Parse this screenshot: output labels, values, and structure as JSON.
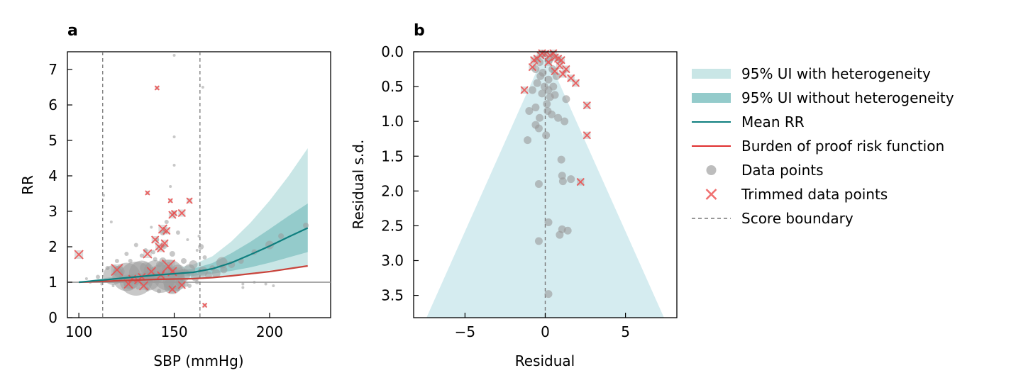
{
  "colors": {
    "ui_het": "#c9e6e6",
    "ui_nohet": "#94cbcb",
    "mean": "#0f7f7f",
    "bop": "#c8443c",
    "points": "#9a9a9a",
    "trim": "#ef4a4a",
    "boundary": "#777777",
    "funnel": "#d5ecf0",
    "ref": "#8c8c8c"
  },
  "legend": [
    {
      "label": "95% UI with heterogeneity",
      "kind": "band-light"
    },
    {
      "label": "95% UI without heterogeneity",
      "kind": "band-dark"
    },
    {
      "label": "Mean RR",
      "kind": "line-teal"
    },
    {
      "label": "Burden of proof risk function",
      "kind": "line-red"
    },
    {
      "label": "Data points",
      "kind": "dot"
    },
    {
      "label": "Trimmed data points",
      "kind": "cross"
    },
    {
      "label": "Score boundary",
      "kind": "dash"
    }
  ],
  "chart_data": [
    {
      "panel_label": "a",
      "type": "scatter",
      "xlabel": "SBP (mmHg)",
      "ylabel": "RR",
      "xlim": [
        94,
        232
      ],
      "ylim": [
        0,
        7.5
      ],
      "xticks": [
        100,
        150,
        200
      ],
      "yticks": [
        0,
        1,
        2,
        3,
        4,
        5,
        6,
        7
      ],
      "score_boundaries": [
        112.5,
        163.5
      ],
      "reference_line_y": 1,
      "curve_x": [
        100,
        110,
        120,
        130,
        140,
        150,
        160,
        170,
        180,
        190,
        200,
        210,
        220
      ],
      "mean_rr": [
        1.0,
        1.05,
        1.1,
        1.15,
        1.2,
        1.24,
        1.28,
        1.38,
        1.55,
        1.78,
        2.02,
        2.28,
        2.53
      ],
      "ui_nohet_lower": [
        1.0,
        1.04,
        1.08,
        1.11,
        1.14,
        1.16,
        1.18,
        1.24,
        1.32,
        1.42,
        1.55,
        1.7,
        1.85
      ],
      "ui_nohet_upper": [
        1.0,
        1.07,
        1.13,
        1.19,
        1.26,
        1.31,
        1.38,
        1.54,
        1.82,
        2.14,
        2.5,
        2.87,
        3.22
      ],
      "ui_het_lower": [
        1.0,
        1.02,
        1.05,
        1.07,
        1.09,
        1.1,
        1.11,
        1.15,
        1.2,
        1.26,
        1.33,
        1.4,
        1.47
      ],
      "ui_het_upper": [
        1.0,
        1.09,
        1.17,
        1.25,
        1.32,
        1.39,
        1.5,
        1.73,
        2.15,
        2.68,
        3.3,
        4.0,
        4.78
      ],
      "bop_risk": [
        1.0,
        1.02,
        1.04,
        1.06,
        1.08,
        1.09,
        1.1,
        1.13,
        1.18,
        1.24,
        1.3,
        1.38,
        1.46
      ],
      "data_points": [
        [
          118,
          1.2,
          14
        ],
        [
          125,
          1.15,
          20
        ],
        [
          130,
          1.1,
          24
        ],
        [
          133,
          1.25,
          18
        ],
        [
          137,
          1.05,
          14
        ],
        [
          140,
          1.3,
          16
        ],
        [
          143,
          1.1,
          20
        ],
        [
          147,
          1.2,
          22
        ],
        [
          150,
          1.05,
          16
        ],
        [
          149,
          0.9,
          12
        ],
        [
          121,
          1.3,
          8
        ],
        [
          127,
          1.0,
          10
        ],
        [
          135,
          1.4,
          8
        ],
        [
          152,
          1.3,
          10
        ],
        [
          155,
          1.2,
          9
        ],
        [
          158,
          1.35,
          8
        ],
        [
          161,
          1.15,
          6
        ],
        [
          165,
          1.3,
          7
        ],
        [
          168,
          1.2,
          5
        ],
        [
          172,
          1.25,
          6
        ],
        [
          176,
          1.35,
          5
        ],
        [
          180,
          1.5,
          5
        ],
        [
          185,
          1.6,
          4
        ],
        [
          192,
          1.85,
          4
        ],
        [
          200,
          2.05,
          6
        ],
        [
          206,
          2.3,
          4
        ],
        [
          219,
          2.6,
          4
        ],
        [
          175,
          1.55,
          8
        ],
        [
          170,
          1.4,
          4
        ],
        [
          160,
          1.5,
          6
        ],
        [
          155,
          1.6,
          4
        ],
        [
          149,
          1.8,
          4
        ],
        [
          145,
          2.0,
          3
        ],
        [
          140,
          1.65,
          3
        ],
        [
          135,
          1.9,
          3
        ],
        [
          130,
          2.05,
          3
        ],
        [
          125,
          1.8,
          3
        ],
        [
          120,
          1.6,
          3
        ],
        [
          115,
          1.4,
          3
        ],
        [
          110,
          1.15,
          3
        ],
        [
          106,
          1.0,
          2
        ],
        [
          104,
          1.1,
          2
        ],
        [
          117,
          2.7,
          2
        ],
        [
          113,
          3.45,
          2
        ],
        [
          112,
          0.95,
          2
        ],
        [
          118,
          0.9,
          2
        ],
        [
          150,
          4.3,
          2
        ],
        [
          150,
          5.1,
          2
        ],
        [
          148,
          3.7,
          2
        ],
        [
          146,
          2.7,
          3
        ],
        [
          144,
          2.4,
          4
        ],
        [
          141,
          2.2,
          3
        ],
        [
          138,
          2.55,
          2
        ],
        [
          152,
          2.4,
          3
        ],
        [
          157,
          2.2,
          2
        ],
        [
          162,
          1.9,
          2
        ],
        [
          164,
          2.0,
          4
        ],
        [
          166,
          1.7,
          3
        ],
        [
          163,
          2.3,
          2
        ],
        [
          165,
          6.5,
          2
        ],
        [
          150,
          7.4,
          2
        ],
        [
          142,
          1.5,
          4
        ],
        [
          147,
          1.45,
          6
        ],
        [
          153,
          1.0,
          6
        ],
        [
          156,
          0.95,
          4
        ],
        [
          186,
          0.85,
          2
        ],
        [
          186,
          0.95,
          2
        ],
        [
          192,
          1.0,
          2
        ],
        [
          198,
          0.95,
          2
        ],
        [
          202,
          0.9,
          2
        ],
        [
          127,
          1.6,
          3
        ],
        [
          133,
          1.75,
          3
        ],
        [
          139,
          1.85,
          3
        ],
        [
          144,
          1.6,
          5
        ],
        [
          136,
          0.8,
          3
        ],
        [
          131,
          0.85,
          3
        ],
        [
          142,
          0.75,
          3
        ],
        [
          152,
          0.8,
          3
        ],
        [
          158,
          0.9,
          3
        ],
        [
          162,
          1.0,
          3
        ]
      ],
      "trimmed_points": [
        [
          100,
          1.78,
          6
        ],
        [
          120,
          1.35,
          8
        ],
        [
          126,
          0.95,
          6
        ],
        [
          131,
          1.05,
          5
        ],
        [
          134,
          0.9,
          6
        ],
        [
          136,
          1.8,
          6
        ],
        [
          140,
          2.2,
          5
        ],
        [
          142,
          2.0,
          5
        ],
        [
          143,
          1.95,
          5
        ],
        [
          144,
          2.5,
          6
        ],
        [
          145,
          2.1,
          5
        ],
        [
          146,
          2.45,
          5
        ],
        [
          147,
          1.45,
          9
        ],
        [
          149,
          1.3,
          6
        ],
        [
          149,
          0.8,
          5
        ],
        [
          148,
          3.3,
          3
        ],
        [
          149,
          2.9,
          5
        ],
        [
          150,
          2.95,
          4
        ],
        [
          154,
          2.95,
          5
        ],
        [
          158,
          3.3,
          4
        ],
        [
          141,
          6.48,
          3
        ],
        [
          136,
          3.52,
          3
        ],
        [
          154,
          0.92,
          5
        ],
        [
          166,
          0.35,
          3
        ],
        [
          143,
          1.2,
          5
        ],
        [
          138,
          1.3,
          6
        ],
        [
          133,
          1.15,
          5
        ],
        [
          128,
          1.1,
          5
        ]
      ]
    },
    {
      "panel_label": "b",
      "type": "scatter",
      "xlabel": "Residual",
      "ylabel": "Residual s.d.",
      "xlim": [
        -8.2,
        8.2
      ],
      "ylim": [
        3.82,
        0
      ],
      "xticks": [
        -5,
        0,
        5
      ],
      "xtick_labels": [
        "−5",
        "0",
        "5"
      ],
      "yticks": [
        0.0,
        0.5,
        1.0,
        1.5,
        2.0,
        2.5,
        3.0,
        3.5
      ],
      "ytick_labels": [
        "0.0",
        "0.5",
        "1.0",
        "1.5",
        "2.0",
        "2.5",
        "3.0",
        "3.5"
      ],
      "funnel_half_width_at_bottom": 7.4,
      "data_points": [
        [
          -0.3,
          0.35
        ],
        [
          -0.5,
          0.45
        ],
        [
          0.2,
          0.4
        ],
        [
          0.5,
          0.5
        ],
        [
          -0.2,
          0.6
        ],
        [
          0.3,
          0.65
        ],
        [
          -0.8,
          0.55
        ],
        [
          -0.6,
          0.8
        ],
        [
          0.1,
          0.75
        ],
        [
          0.6,
          0.62
        ],
        [
          1.3,
          0.68
        ],
        [
          -1.0,
          0.85
        ],
        [
          0.15,
          0.85
        ],
        [
          -0.35,
          0.95
        ],
        [
          0.4,
          0.9
        ],
        [
          0.8,
          0.95
        ],
        [
          1.2,
          1.0
        ],
        [
          -0.6,
          1.05
        ],
        [
          -0.4,
          1.1
        ],
        [
          -1.1,
          1.27
        ],
        [
          0.05,
          1.2
        ],
        [
          1.0,
          1.55
        ],
        [
          1.05,
          1.78
        ],
        [
          1.6,
          1.83
        ],
        [
          1.1,
          1.86
        ],
        [
          -0.4,
          1.9
        ],
        [
          0.2,
          2.45
        ],
        [
          1.05,
          2.55
        ],
        [
          1.4,
          2.57
        ],
        [
          0.9,
          2.63
        ],
        [
          -0.4,
          2.72
        ],
        [
          0.2,
          3.48
        ],
        [
          0.2,
          0.55
        ],
        [
          -0.15,
          0.3
        ],
        [
          0.45,
          0.25
        ],
        [
          -0.6,
          0.25
        ],
        [
          0.7,
          0.35
        ],
        [
          -0.05,
          0.5
        ],
        [
          -0.35,
          0.15
        ],
        [
          0.25,
          0.12
        ]
      ],
      "trimmed_points": [
        [
          0.0,
          0.03
        ],
        [
          0.3,
          0.05
        ],
        [
          0.6,
          0.08
        ],
        [
          0.8,
          0.1
        ],
        [
          1.0,
          0.12
        ],
        [
          -0.3,
          0.05
        ],
        [
          -0.5,
          0.1
        ],
        [
          -0.7,
          0.12
        ],
        [
          -0.2,
          0.02
        ],
        [
          0.5,
          0.02
        ],
        [
          0.9,
          0.2
        ],
        [
          1.1,
          0.32
        ],
        [
          0.6,
          0.28
        ],
        [
          1.6,
          0.38
        ],
        [
          1.9,
          0.45
        ],
        [
          2.6,
          0.77
        ],
        [
          2.6,
          1.2
        ],
        [
          -1.3,
          0.55
        ],
        [
          2.2,
          1.87
        ],
        [
          1.3,
          0.25
        ],
        [
          0.2,
          0.15
        ],
        [
          -0.8,
          0.22
        ]
      ]
    }
  ]
}
